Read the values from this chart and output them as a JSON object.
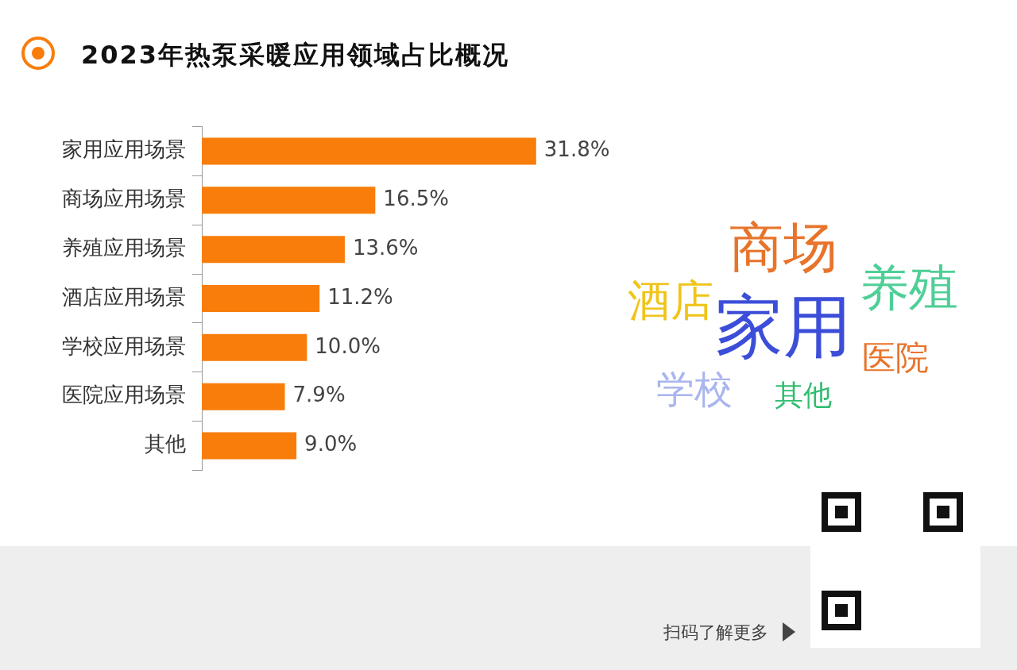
{
  "chart_data": {
    "type": "bar",
    "orientation": "horizontal",
    "title": "2023年热泵采暖应用领域占比概况",
    "categories": [
      "家用应用场景",
      "商场应用场景",
      "养殖应用场景",
      "酒店应用场景",
      "学校应用场景",
      "医院应用场景",
      "其他"
    ],
    "values": [
      31.8,
      16.5,
      13.6,
      11.2,
      10.0,
      7.9,
      9.0
    ],
    "value_labels": [
      "31.8%",
      "16.5%",
      "13.6%",
      "11.2%",
      "10.0%",
      "7.9%",
      "9.0%"
    ],
    "color": "#f97d0b",
    "grid": false,
    "legend": false,
    "tick_labels": "y",
    "annotations": [
      "商场",
      "养殖",
      "酒店",
      "家用",
      "医院",
      "学校",
      "其他",
      "扫码了解更多"
    ]
  }
}
